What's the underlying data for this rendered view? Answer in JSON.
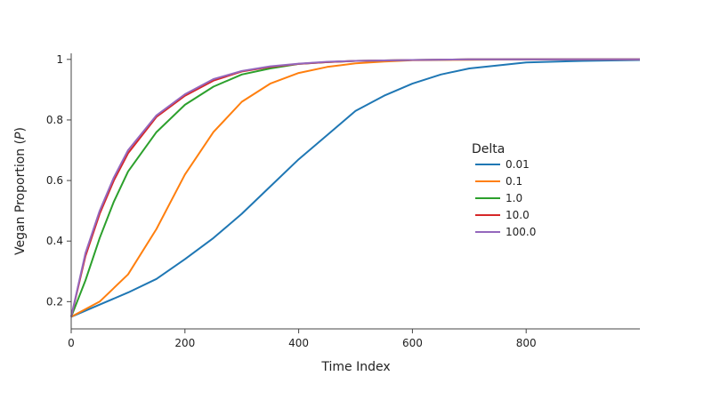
{
  "chart_data": {
    "type": "line",
    "xlabel": "Time Index",
    "ylabel_prefix": "Vegan Proportion (",
    "ylabel_symbol": "P",
    "ylabel_suffix": ")",
    "xlim": [
      0,
      1000
    ],
    "ylim": [
      0.11,
      1.02
    ],
    "xticks": [
      0,
      200,
      400,
      600,
      800
    ],
    "yticks": [
      0.2,
      0.4,
      0.6,
      0.8,
      1
    ],
    "xtick_labels": [
      "0",
      "200",
      "400",
      "600",
      "800"
    ],
    "ytick_labels": [
      "0.2",
      "0.4",
      "0.6",
      "0.8",
      "1"
    ],
    "grid": false,
    "legend": {
      "title": "Delta",
      "placement": "right"
    },
    "series": [
      {
        "name": "0.01",
        "color": "#1f77b4",
        "points": [
          [
            0,
            0.15
          ],
          [
            50,
            0.19
          ],
          [
            100,
            0.23
          ],
          [
            150,
            0.275
          ],
          [
            200,
            0.34
          ],
          [
            250,
            0.41
          ],
          [
            300,
            0.49
          ],
          [
            350,
            0.58
          ],
          [
            400,
            0.67
          ],
          [
            450,
            0.75
          ],
          [
            500,
            0.83
          ],
          [
            550,
            0.88
          ],
          [
            600,
            0.92
          ],
          [
            650,
            0.95
          ],
          [
            700,
            0.97
          ],
          [
            750,
            0.98
          ],
          [
            800,
            0.99
          ],
          [
            900,
            0.995
          ],
          [
            1000,
            0.998
          ]
        ]
      },
      {
        "name": "0.1",
        "color": "#ff7f0e",
        "points": [
          [
            0,
            0.15
          ],
          [
            50,
            0.2
          ],
          [
            100,
            0.29
          ],
          [
            150,
            0.44
          ],
          [
            200,
            0.62
          ],
          [
            250,
            0.76
          ],
          [
            300,
            0.86
          ],
          [
            350,
            0.92
          ],
          [
            400,
            0.955
          ],
          [
            450,
            0.975
          ],
          [
            500,
            0.987
          ],
          [
            550,
            0.993
          ],
          [
            600,
            0.997
          ],
          [
            700,
            0.999
          ],
          [
            800,
            1.0
          ],
          [
            1000,
            1.0
          ]
        ]
      },
      {
        "name": "1.0",
        "color": "#2ca02c",
        "points": [
          [
            0,
            0.15
          ],
          [
            25,
            0.27
          ],
          [
            50,
            0.41
          ],
          [
            75,
            0.53
          ],
          [
            100,
            0.63
          ],
          [
            150,
            0.76
          ],
          [
            200,
            0.85
          ],
          [
            250,
            0.91
          ],
          [
            300,
            0.95
          ],
          [
            350,
            0.97
          ],
          [
            400,
            0.985
          ],
          [
            450,
            0.991
          ],
          [
            500,
            0.995
          ],
          [
            600,
            0.998
          ],
          [
            700,
            1.0
          ],
          [
            1000,
            1.0
          ]
        ]
      },
      {
        "name": "10.0",
        "color": "#d62728",
        "points": [
          [
            0,
            0.15
          ],
          [
            25,
            0.35
          ],
          [
            50,
            0.49
          ],
          [
            75,
            0.6
          ],
          [
            100,
            0.69
          ],
          [
            150,
            0.81
          ],
          [
            200,
            0.88
          ],
          [
            250,
            0.93
          ],
          [
            300,
            0.96
          ],
          [
            350,
            0.975
          ],
          [
            400,
            0.985
          ],
          [
            450,
            0.991
          ],
          [
            500,
            0.995
          ],
          [
            600,
            0.998
          ],
          [
            700,
            1.0
          ],
          [
            1000,
            1.0
          ]
        ]
      },
      {
        "name": "100.0",
        "color": "#9467bd",
        "points": [
          [
            0,
            0.15
          ],
          [
            25,
            0.36
          ],
          [
            50,
            0.5
          ],
          [
            75,
            0.61
          ],
          [
            100,
            0.7
          ],
          [
            150,
            0.815
          ],
          [
            200,
            0.885
          ],
          [
            250,
            0.935
          ],
          [
            300,
            0.962
          ],
          [
            350,
            0.977
          ],
          [
            400,
            0.986
          ],
          [
            450,
            0.992
          ],
          [
            500,
            0.995
          ],
          [
            600,
            0.998
          ],
          [
            700,
            1.0
          ],
          [
            1000,
            1.0
          ]
        ]
      }
    ]
  }
}
